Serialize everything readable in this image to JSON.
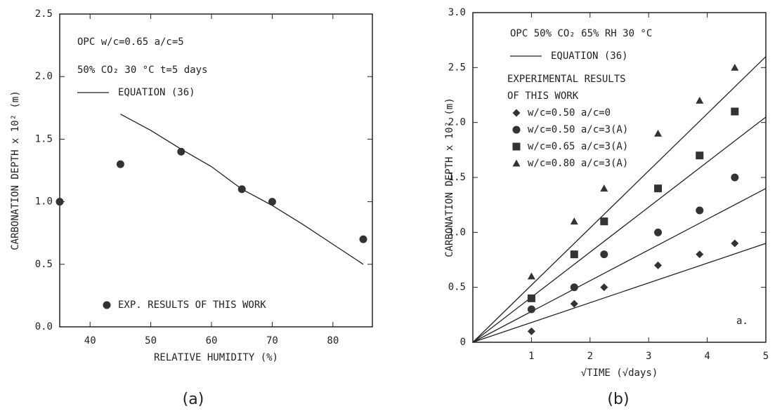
{
  "chart_data": [
    {
      "type": "scatter",
      "y_label": "CARBONATION DEPTH x 10² (m)",
      "x_label": "RELATIVE HUMIDITY (%)",
      "caption": "(a)",
      "annotations": [
        "OPC   w/c=0.65  a/c=5",
        "50% CO₂  30 °C  t=5 days"
      ],
      "equation_label": "EQUATION (36)",
      "xlim": [
        35,
        86.5
      ],
      "xticks": [
        40,
        50,
        60,
        70,
        80
      ],
      "ylim": [
        0,
        2.5
      ],
      "yticks": [
        {
          "value": 0,
          "label": "0.0"
        },
        0.5,
        {
          "value": 1,
          "label": "1.0"
        },
        1.5,
        {
          "value": 2,
          "label": "2.0"
        },
        2.5
      ],
      "fit_lines": [
        {
          "x": [
            45,
            50,
            55,
            60,
            65,
            70,
            75,
            80,
            85
          ],
          "values": [
            1.7,
            1.57,
            1.42,
            1.28,
            1.1,
            0.97,
            0.82,
            0.66,
            0.5
          ]
        }
      ],
      "series": [
        {
          "name": "EXP. RESULTS OF THIS WORK",
          "color": "#333333",
          "marker": "circle",
          "x": [
            35,
            45,
            55,
            65,
            70,
            85
          ],
          "values": [
            1.0,
            1.3,
            1.4,
            1.1,
            1.0,
            0.7
          ]
        }
      ]
    },
    {
      "type": "scatter",
      "y_label": "CARBONATION DEPTH x 10² (m)",
      "x_label": "√TIME (√days)",
      "caption": "(b)",
      "annotations": [
        "OPC   50% CO₂   65% RH   30 °C",
        "a."
      ],
      "equation_label": "EQUATION (36)",
      "legend_title": [
        "EXPERIMENTAL RESULTS",
        "OF THIS WORK"
      ],
      "xlim": [
        0,
        5
      ],
      "xticks": [
        1,
        2,
        3,
        4,
        5
      ],
      "ylim": [
        0,
        3
      ],
      "yticks": [
        0,
        0.5,
        {
          "value": 1,
          "label": "1.0"
        },
        1.5,
        {
          "value": 2,
          "label": "2.0"
        },
        2.5,
        {
          "value": 3,
          "label": "3.0"
        }
      ],
      "fit_lines": [
        {
          "x": [
            0,
            5
          ],
          "values": [
            0,
            0.9
          ]
        },
        {
          "x": [
            0,
            5
          ],
          "values": [
            0,
            1.4
          ]
        },
        {
          "x": [
            0,
            5
          ],
          "values": [
            0,
            2.05
          ]
        },
        {
          "x": [
            0,
            5
          ],
          "values": [
            0,
            2.6
          ]
        }
      ],
      "series": [
        {
          "name": "w/c=0.50  a/c=0",
          "color": "#333333",
          "marker": "diamond",
          "x": [
            1,
            1.73,
            2.24,
            3.16,
            3.87,
            4.47
          ],
          "values": [
            0.1,
            0.35,
            0.5,
            0.7,
            0.8,
            0.9
          ]
        },
        {
          "name": "w/c=0.50  a/c=3(A)",
          "color": "#333333",
          "marker": "circle",
          "x": [
            1,
            1.73,
            2.24,
            3.16,
            3.87,
            4.47
          ],
          "values": [
            0.3,
            0.5,
            0.8,
            1.0,
            1.2,
            1.5
          ]
        },
        {
          "name": "w/c=0.65  a/c=3(A)",
          "color": "#333333",
          "marker": "square",
          "x": [
            1,
            1.73,
            2.24,
            3.16,
            3.87,
            4.47
          ],
          "values": [
            0.4,
            0.8,
            1.1,
            1.4,
            1.7,
            2.1
          ]
        },
        {
          "name": "w/c=0.80  a/c=3(A)",
          "color": "#333333",
          "marker": "triangle",
          "x": [
            1,
            1.73,
            2.24,
            3.16,
            3.87,
            4.47
          ],
          "values": [
            0.6,
            1.1,
            1.4,
            1.9,
            2.2,
            2.5
          ]
        }
      ]
    }
  ]
}
